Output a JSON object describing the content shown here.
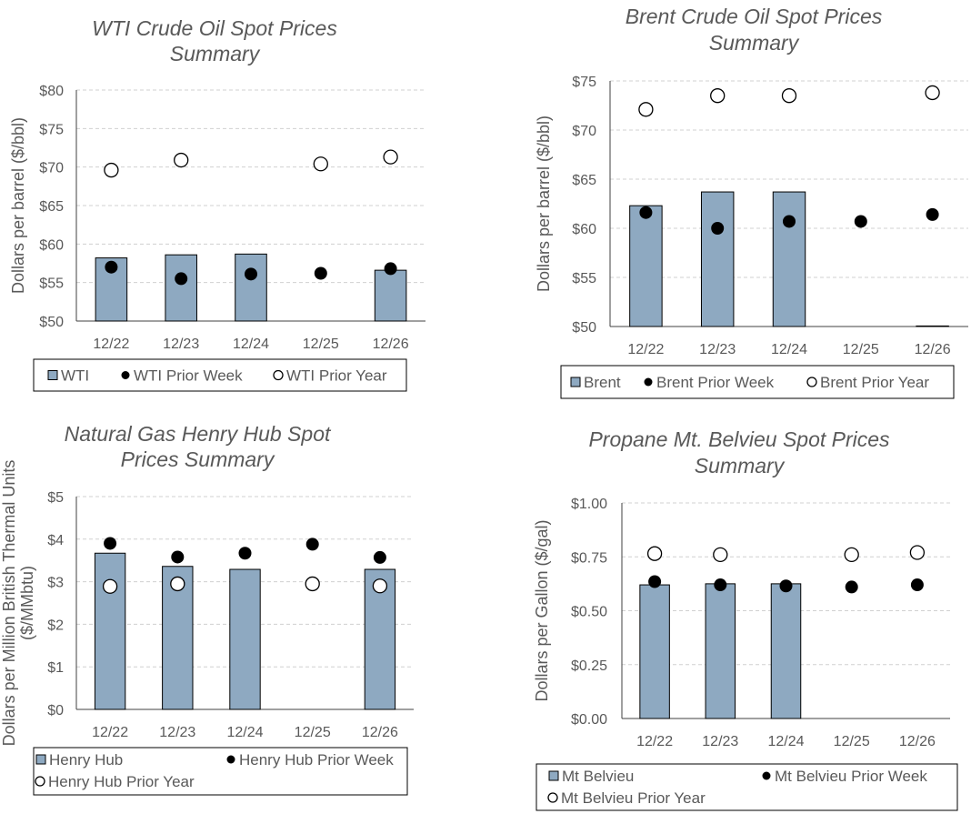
{
  "colors": {
    "bar": "#8ea9c1",
    "prior_week": "#000000",
    "prior_year": "#ffffff"
  },
  "chart_data": [
    {
      "id": "wti",
      "type": "bar",
      "title": [
        "WTI Crude Oil  Spot Prices",
        "Summary"
      ],
      "ylabel": [
        "Dollars per barrel ($/bbl)"
      ],
      "categories": [
        "12/22",
        "12/23",
        "12/24",
        "12/25",
        "12/26"
      ],
      "ylim": [
        50,
        80
      ],
      "yticks": [
        50,
        55,
        60,
        65,
        70,
        75,
        80
      ],
      "ytick_labels": [
        "$50",
        "$55",
        "$60",
        "$65",
        "$70",
        "$75",
        "$80"
      ],
      "series": [
        {
          "name": "WTI",
          "kind": "bar",
          "values": [
            58.2,
            58.6,
            58.7,
            null,
            56.6
          ]
        },
        {
          "name": "WTI Prior Week",
          "kind": "dot",
          "values": [
            57.0,
            55.5,
            56.1,
            56.2,
            56.8
          ]
        },
        {
          "name": "WTI Prior Year",
          "kind": "ring",
          "values": [
            69.6,
            70.9,
            null,
            70.4,
            71.3
          ]
        }
      ],
      "legend_rows": [
        [
          0,
          1,
          2
        ]
      ],
      "grid": true,
      "legend_position": "bottom"
    },
    {
      "id": "brent",
      "type": "bar",
      "title": [
        "Brent Crude Oil Spot Prices",
        "Summary"
      ],
      "ylabel": [
        "Dollars per barrel ($/bbl)"
      ],
      "categories": [
        "12/22",
        "12/23",
        "12/24",
        "12/25",
        "12/26"
      ],
      "ylim": [
        50,
        75
      ],
      "yticks": [
        50,
        55,
        60,
        65,
        70,
        75
      ],
      "ytick_labels": [
        "$50",
        "$55",
        "$60",
        "$65",
        "$70",
        "$75"
      ],
      "series": [
        {
          "name": "Brent",
          "kind": "bar",
          "values": [
            62.3,
            63.7,
            63.7,
            null,
            50.0
          ]
        },
        {
          "name": "Brent Prior Week",
          "kind": "dot",
          "values": [
            61.6,
            60.0,
            60.7,
            60.7,
            61.4
          ]
        },
        {
          "name": "Brent Prior Year",
          "kind": "ring",
          "values": [
            72.1,
            73.5,
            73.5,
            null,
            73.8
          ]
        }
      ],
      "legend_rows": [
        [
          0,
          1,
          2
        ]
      ],
      "grid": true,
      "legend_position": "bottom"
    },
    {
      "id": "henry",
      "type": "bar",
      "title": [
        "Natural Gas Henry Hub Spot",
        "Prices Summary"
      ],
      "ylabel": [
        "Dollars per Million British Thermal Units",
        "($/MMbtu)"
      ],
      "categories": [
        "12/22",
        "12/23",
        "12/24",
        "12/25",
        "12/26"
      ],
      "ylim": [
        0,
        5
      ],
      "yticks": [
        0,
        1,
        2,
        3,
        4,
        5
      ],
      "ytick_labels": [
        "$0",
        "$1",
        "$2",
        "$3",
        "$4",
        "$5"
      ],
      "series": [
        {
          "name": "Henry Hub",
          "kind": "bar",
          "values": [
            3.67,
            3.36,
            3.29,
            null,
            3.29
          ]
        },
        {
          "name": "Henry Hub Prior Week",
          "kind": "dot",
          "values": [
            3.9,
            3.58,
            3.67,
            3.88,
            3.57
          ]
        },
        {
          "name": "Henry Hub Prior Year",
          "kind": "ring",
          "values": [
            2.89,
            2.95,
            null,
            2.95,
            2.9
          ]
        }
      ],
      "legend_rows": [
        [
          0,
          1
        ],
        [
          2
        ]
      ],
      "grid": true,
      "legend_position": "bottom"
    },
    {
      "id": "propane",
      "type": "bar",
      "title": [
        "Propane Mt. Belvieu Spot Prices",
        "Summary"
      ],
      "ylabel": [
        "Dollars per Gallon ($/gal)"
      ],
      "categories": [
        "12/22",
        "12/23",
        "12/24",
        "12/25",
        "12/26"
      ],
      "ylim": [
        0,
        1
      ],
      "yticks": [
        0,
        0.25,
        0.5,
        0.75,
        1.0
      ],
      "ytick_labels": [
        "$0.00",
        "$0.25",
        "$0.50",
        "$0.75",
        "$1.00"
      ],
      "series": [
        {
          "name": "Mt Belvieu",
          "kind": "bar",
          "values": [
            0.62,
            0.625,
            0.625,
            null,
            null
          ]
        },
        {
          "name": "Mt Belvieu Prior Week",
          "kind": "dot",
          "values": [
            0.635,
            0.62,
            0.615,
            0.61,
            0.62
          ]
        },
        {
          "name": "Mt Belvieu Prior Year",
          "kind": "ring",
          "values": [
            0.765,
            0.76,
            null,
            0.76,
            0.77
          ]
        }
      ],
      "legend_rows": [
        [
          0,
          1
        ],
        [
          2
        ]
      ],
      "grid": true,
      "legend_position": "bottom"
    }
  ]
}
